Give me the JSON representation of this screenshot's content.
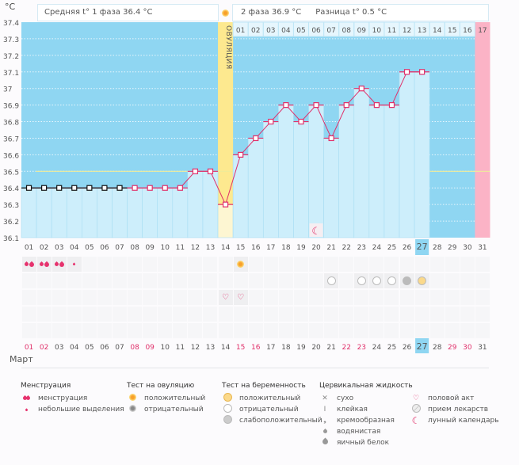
{
  "header": {
    "unit": "°C",
    "phase1": "Средняя t° 1 фаза 36.4 °C",
    "phase2": "2 фаза 36.9 °C",
    "difference": "Разница t° 0.5 °C",
    "ovulation_label": "ОВУЛЯЦИЯ"
  },
  "chart_data": {
    "type": "line",
    "title": "",
    "xlabel": "Март",
    "ylabel": "°C",
    "ylim": [
      36.1,
      37.4
    ],
    "yticks": [
      "37.4",
      "37.3",
      "37.2",
      "37.1",
      "37",
      "36.9",
      "36.8",
      "36.7",
      "36.6",
      "36.5",
      "36.4",
      "36.3",
      "36.2",
      "36.1"
    ],
    "days": [
      "01",
      "02",
      "03",
      "04",
      "05",
      "06",
      "07",
      "08",
      "09",
      "10",
      "11",
      "12",
      "13",
      "14",
      "15",
      "16",
      "17",
      "18",
      "19",
      "20",
      "21",
      "22",
      "23",
      "24",
      "25",
      "26",
      "27",
      "28",
      "29",
      "30",
      "31"
    ],
    "values": [
      36.4,
      36.4,
      36.4,
      36.4,
      36.4,
      36.4,
      36.4,
      36.4,
      36.4,
      36.4,
      36.4,
      36.5,
      36.5,
      36.3,
      36.6,
      36.7,
      36.8,
      36.9,
      36.8,
      36.9,
      36.7,
      36.9,
      37.0,
      36.9,
      36.9,
      37.1,
      37.1,
      null,
      null,
      null,
      null
    ],
    "cover_line": 36.5,
    "ovulation_day": 14,
    "today": 27,
    "next_cycle_day": 31,
    "cycle2_days": [
      "01",
      "02",
      "03",
      "04",
      "05",
      "06",
      "07",
      "08",
      "09",
      "10",
      "11",
      "12",
      "13",
      "14",
      "15",
      "16",
      "17"
    ],
    "weekend_days": [
      1,
      2,
      8,
      9,
      15,
      16,
      22,
      23,
      29,
      30
    ],
    "moon_day": 20,
    "colors": {
      "bg": "#8fd6f2",
      "bar": "#cdeefb",
      "line": "#e0306a",
      "ovulation": "#fde98f",
      "next": "#fbb3c6",
      "cover": "#eeeb9a"
    }
  },
  "events": {
    "menstruation": [
      {
        "day": 1,
        "type": "heavy"
      },
      {
        "day": 2,
        "type": "heavy"
      },
      {
        "day": 3,
        "type": "heavy"
      },
      {
        "day": 4,
        "type": "light"
      }
    ],
    "ovulation_test": [
      {
        "day": 15,
        "type": "positive"
      }
    ],
    "pregnancy_test": [
      {
        "day": 21,
        "type": "negative"
      },
      {
        "day": 23,
        "type": "negative"
      },
      {
        "day": 24,
        "type": "negative"
      },
      {
        "day": 25,
        "type": "negative"
      },
      {
        "day": 26,
        "type": "weak"
      },
      {
        "day": 27,
        "type": "positive"
      }
    ],
    "intercourse": [
      {
        "day": 14
      },
      {
        "day": 15
      }
    ]
  },
  "month": "Март",
  "legend": {
    "menstruation": {
      "title": "Менструация",
      "items": [
        "менструация",
        "небольшие выделения"
      ]
    },
    "ovulation_test": {
      "title": "Тест на овуляцию",
      "items": [
        "положительный",
        "отрицательный"
      ]
    },
    "pregnancy_test": {
      "title": "Тест на беременность",
      "items": [
        "положительный",
        "отрицательный",
        "слабоположительный"
      ]
    },
    "cervical": {
      "title": "Цервикальная жидкость",
      "items": [
        "сухо",
        "клейкая",
        "кремообразная",
        "водянистая",
        "яичный белок"
      ]
    },
    "other": {
      "items": [
        "половой акт",
        "прием лекарств",
        "лунный календарь"
      ]
    }
  }
}
